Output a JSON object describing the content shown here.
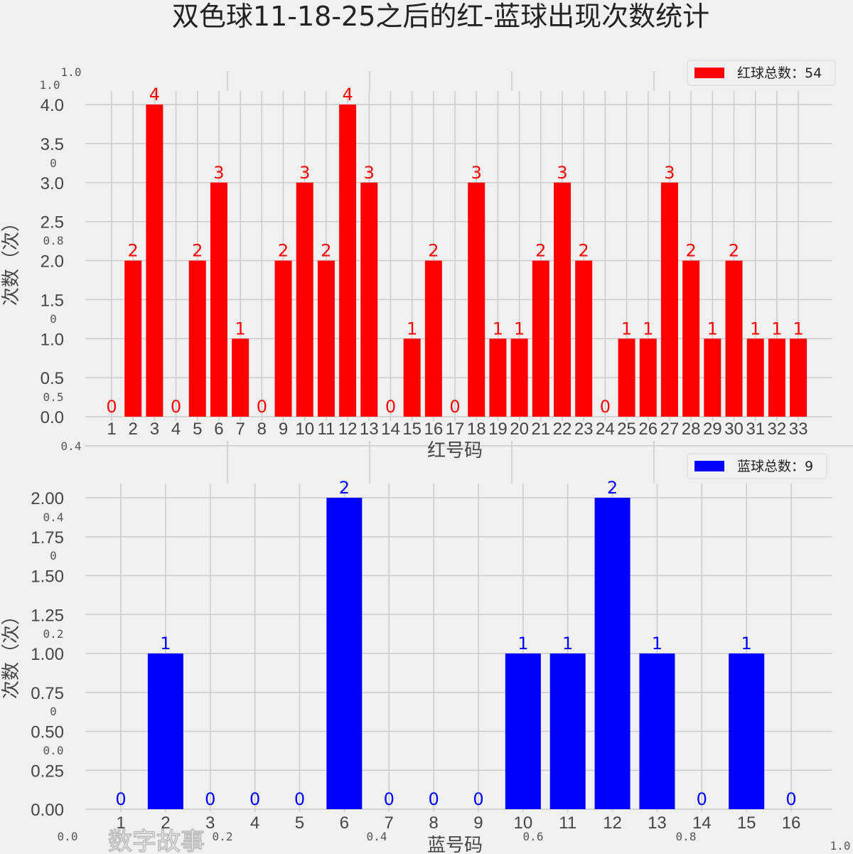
{
  "title": "双色球11-18-25之后的红-蓝球出现次数统计",
  "colors": {
    "red": "#ff0000",
    "blue": "#0000ff",
    "background": "#f0f0f0",
    "grid": "#cbcbcb"
  },
  "watermark": "数字故事",
  "ghost_ticks": [
    "1.0",
    "1.0",
    "0",
    "0.8",
    "0",
    "0.5",
    "0.4",
    "0.4",
    "0",
    "0.2",
    "0",
    "0.0",
    "0.0",
    "0.2",
    "0.4",
    "0.6",
    "0.8",
    "1.0"
  ],
  "chart_data": [
    {
      "type": "bar",
      "title": "",
      "xlabel": "红号码",
      "ylabel": "次数（次）",
      "legend": "红球总数：54",
      "legend_position": "top-right",
      "color": "#ff0000",
      "categories": [
        "1",
        "2",
        "3",
        "4",
        "5",
        "6",
        "7",
        "8",
        "9",
        "10",
        "11",
        "12",
        "13",
        "14",
        "15",
        "16",
        "17",
        "18",
        "19",
        "20",
        "21",
        "22",
        "23",
        "24",
        "25",
        "26",
        "27",
        "28",
        "29",
        "30",
        "31",
        "32",
        "33"
      ],
      "values": [
        0,
        2,
        4,
        0,
        2,
        3,
        1,
        0,
        2,
        3,
        2,
        4,
        3,
        0,
        1,
        2,
        0,
        3,
        1,
        1,
        2,
        3,
        2,
        0,
        1,
        1,
        3,
        2,
        1,
        2,
        1,
        1,
        1
      ],
      "ylim": [
        0,
        4
      ],
      "yticks": [
        "0.0",
        "0.5",
        "1.0",
        "1.5",
        "2.0",
        "2.5",
        "3.0",
        "3.5",
        "4.0"
      ],
      "grid": true
    },
    {
      "type": "bar",
      "title": "",
      "xlabel": "蓝号码",
      "ylabel": "次数（次）",
      "legend": "蓝球总数：9",
      "legend_position": "top-right",
      "color": "#0000ff",
      "categories": [
        "1",
        "2",
        "3",
        "4",
        "5",
        "6",
        "7",
        "8",
        "9",
        "10",
        "11",
        "12",
        "13",
        "14",
        "15",
        "16"
      ],
      "values": [
        0,
        1,
        0,
        0,
        0,
        2,
        0,
        0,
        0,
        1,
        1,
        2,
        1,
        0,
        1,
        0
      ],
      "ylim": [
        0,
        2
      ],
      "yticks": [
        "0.00",
        "0.25",
        "0.50",
        "0.75",
        "1.00",
        "1.25",
        "1.50",
        "1.75",
        "2.00"
      ],
      "grid": true
    }
  ]
}
